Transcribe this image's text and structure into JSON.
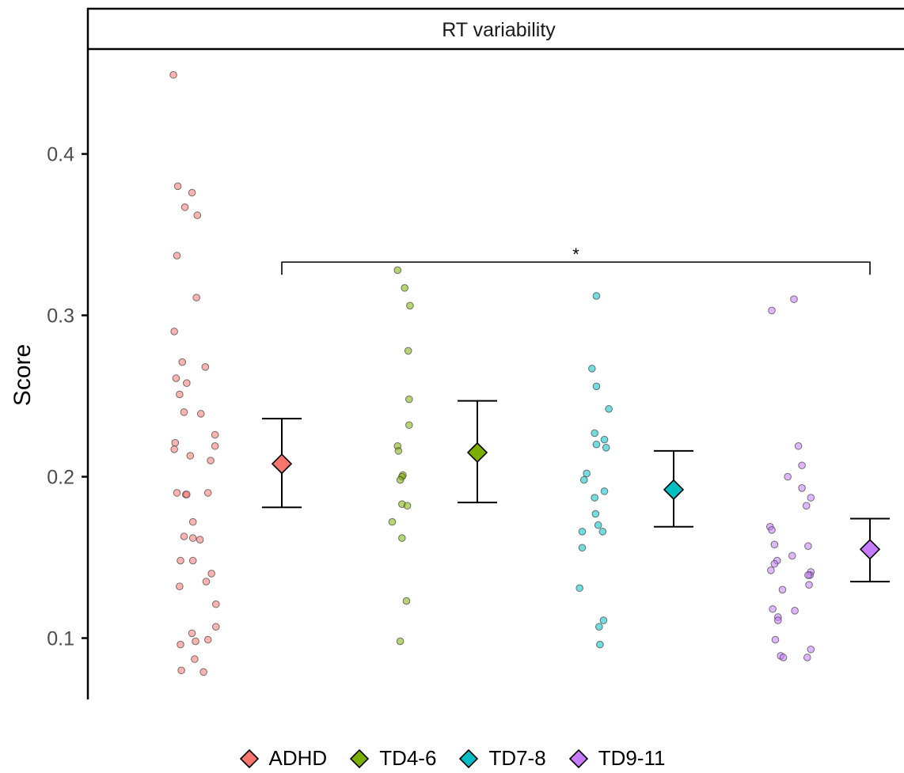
{
  "chart_data": {
    "type": "scatter",
    "facet_title": "RT variability",
    "ylabel": "Score",
    "xlabel": "",
    "ylim": [
      0.062,
      0.465
    ],
    "yticks": [
      {
        "value": 0.1,
        "label": "0.1"
      },
      {
        "value": 0.2,
        "label": "0.2"
      },
      {
        "value": 0.3,
        "label": "0.3"
      },
      {
        "value": 0.4,
        "label": "0.4"
      }
    ],
    "grid": false,
    "legend_position": "bottom",
    "groups": [
      {
        "name": "ADHD",
        "color": "#F8766D",
        "mean": 0.208,
        "ci_low": 0.181,
        "ci_high": 0.236,
        "points": [
          {
            "jitter": -0.33,
            "y": 0.449
          },
          {
            "jitter": -0.28,
            "y": 0.38
          },
          {
            "jitter": -0.12,
            "y": 0.376
          },
          {
            "jitter": -0.2,
            "y": 0.367
          },
          {
            "jitter": -0.06,
            "y": 0.362
          },
          {
            "jitter": -0.29,
            "y": 0.337
          },
          {
            "jitter": -0.07,
            "y": 0.311
          },
          {
            "jitter": -0.32,
            "y": 0.29
          },
          {
            "jitter": -0.23,
            "y": 0.271
          },
          {
            "jitter": 0.03,
            "y": 0.268
          },
          {
            "jitter": -0.3,
            "y": 0.261
          },
          {
            "jitter": -0.18,
            "y": 0.258
          },
          {
            "jitter": -0.26,
            "y": 0.251
          },
          {
            "jitter": -0.21,
            "y": 0.24
          },
          {
            "jitter": -0.02,
            "y": 0.239
          },
          {
            "jitter": 0.14,
            "y": 0.226
          },
          {
            "jitter": -0.31,
            "y": 0.221
          },
          {
            "jitter": 0.14,
            "y": 0.219
          },
          {
            "jitter": -0.32,
            "y": 0.217
          },
          {
            "jitter": -0.14,
            "y": 0.213
          },
          {
            "jitter": 0.09,
            "y": 0.21
          },
          {
            "jitter": -0.29,
            "y": 0.19
          },
          {
            "jitter": 0.06,
            "y": 0.19
          },
          {
            "jitter": -0.19,
            "y": 0.189
          },
          {
            "jitter": -0.18,
            "y": 0.189
          },
          {
            "jitter": -0.11,
            "y": 0.172
          },
          {
            "jitter": -0.21,
            "y": 0.163
          },
          {
            "jitter": -0.11,
            "y": 0.162
          },
          {
            "jitter": -0.03,
            "y": 0.161
          },
          {
            "jitter": -0.25,
            "y": 0.148
          },
          {
            "jitter": -0.11,
            "y": 0.148
          },
          {
            "jitter": 0.1,
            "y": 0.14
          },
          {
            "jitter": 0.04,
            "y": 0.135
          },
          {
            "jitter": -0.26,
            "y": 0.132
          },
          {
            "jitter": 0.15,
            "y": 0.121
          },
          {
            "jitter": 0.15,
            "y": 0.107
          },
          {
            "jitter": -0.12,
            "y": 0.103
          },
          {
            "jitter": 0.06,
            "y": 0.099
          },
          {
            "jitter": -0.08,
            "y": 0.098
          },
          {
            "jitter": -0.25,
            "y": 0.096
          },
          {
            "jitter": -0.09,
            "y": 0.087
          },
          {
            "jitter": -0.24,
            "y": 0.08
          },
          {
            "jitter": 0.01,
            "y": 0.079
          }
        ]
      },
      {
        "name": "TD4-6",
        "color": "#7CAE00",
        "mean": 0.215,
        "ci_low": 0.184,
        "ci_high": 0.247,
        "points": [
          {
            "jitter": 0.02,
            "y": 0.328
          },
          {
            "jitter": 0.1,
            "y": 0.317
          },
          {
            "jitter": 0.16,
            "y": 0.306
          },
          {
            "jitter": 0.14,
            "y": 0.278
          },
          {
            "jitter": 0.15,
            "y": 0.248
          },
          {
            "jitter": 0.15,
            "y": 0.232
          },
          {
            "jitter": 0.02,
            "y": 0.219
          },
          {
            "jitter": 0.03,
            "y": 0.216
          },
          {
            "jitter": 0.08,
            "y": 0.201
          },
          {
            "jitter": 0.07,
            "y": 0.2
          },
          {
            "jitter": 0.05,
            "y": 0.198
          },
          {
            "jitter": 0.07,
            "y": 0.183
          },
          {
            "jitter": 0.13,
            "y": 0.182
          },
          {
            "jitter": -0.04,
            "y": 0.172
          },
          {
            "jitter": 0.07,
            "y": 0.162
          },
          {
            "jitter": 0.12,
            "y": 0.123
          },
          {
            "jitter": 0.05,
            "y": 0.098
          }
        ]
      },
      {
        "name": "TD7-8",
        "color": "#00BFC4",
        "mean": 0.192,
        "ci_low": 0.169,
        "ci_high": 0.216,
        "points": [
          {
            "jitter": 0.12,
            "y": 0.312
          },
          {
            "jitter": 0.07,
            "y": 0.267
          },
          {
            "jitter": 0.12,
            "y": 0.256
          },
          {
            "jitter": 0.26,
            "y": 0.242
          },
          {
            "jitter": 0.1,
            "y": 0.227
          },
          {
            "jitter": 0.21,
            "y": 0.223
          },
          {
            "jitter": 0.12,
            "y": 0.22
          },
          {
            "jitter": 0.23,
            "y": 0.218
          },
          {
            "jitter": 0.01,
            "y": 0.202
          },
          {
            "jitter": -0.02,
            "y": 0.198
          },
          {
            "jitter": 0.21,
            "y": 0.191
          },
          {
            "jitter": 0.1,
            "y": 0.187
          },
          {
            "jitter": 0.11,
            "y": 0.177
          },
          {
            "jitter": 0.14,
            "y": 0.17
          },
          {
            "jitter": -0.04,
            "y": 0.166
          },
          {
            "jitter": 0.19,
            "y": 0.166
          },
          {
            "jitter": -0.04,
            "y": 0.156
          },
          {
            "jitter": -0.07,
            "y": 0.131
          },
          {
            "jitter": 0.2,
            "y": 0.111
          },
          {
            "jitter": 0.15,
            "y": 0.107
          },
          {
            "jitter": 0.16,
            "y": 0.096
          }
        ]
      },
      {
        "name": "TD9-11",
        "color": "#C77CFF",
        "mean": 0.155,
        "ci_low": 0.135,
        "ci_high": 0.174,
        "points": [
          {
            "jitter": 0.0,
            "y": 0.303
          },
          {
            "jitter": 0.25,
            "y": 0.31
          },
          {
            "jitter": 0.3,
            "y": 0.219
          },
          {
            "jitter": 0.34,
            "y": 0.207
          },
          {
            "jitter": 0.18,
            "y": 0.2
          },
          {
            "jitter": 0.34,
            "y": 0.193
          },
          {
            "jitter": 0.44,
            "y": 0.187
          },
          {
            "jitter": 0.39,
            "y": 0.182
          },
          {
            "jitter": -0.02,
            "y": 0.169
          },
          {
            "jitter": 0.0,
            "y": 0.167
          },
          {
            "jitter": 0.03,
            "y": 0.158
          },
          {
            "jitter": 0.41,
            "y": 0.157
          },
          {
            "jitter": 0.23,
            "y": 0.151
          },
          {
            "jitter": 0.06,
            "y": 0.148
          },
          {
            "jitter": 0.03,
            "y": 0.146
          },
          {
            "jitter": -0.01,
            "y": 0.142
          },
          {
            "jitter": 0.44,
            "y": 0.141
          },
          {
            "jitter": 0.43,
            "y": 0.139
          },
          {
            "jitter": 0.41,
            "y": 0.139
          },
          {
            "jitter": 0.42,
            "y": 0.133
          },
          {
            "jitter": 0.12,
            "y": 0.13
          },
          {
            "jitter": 0.01,
            "y": 0.118
          },
          {
            "jitter": 0.26,
            "y": 0.117
          },
          {
            "jitter": 0.07,
            "y": 0.113
          },
          {
            "jitter": 0.07,
            "y": 0.111
          },
          {
            "jitter": 0.04,
            "y": 0.099
          },
          {
            "jitter": 0.44,
            "y": 0.093
          },
          {
            "jitter": 0.1,
            "y": 0.089
          },
          {
            "jitter": 0.13,
            "y": 0.088
          },
          {
            "jitter": 0.4,
            "y": 0.088
          }
        ]
      }
    ],
    "annotations": [
      {
        "type": "bracket",
        "from": "ADHD",
        "to": "TD9-11",
        "y": 0.333,
        "label": "*"
      }
    ]
  }
}
